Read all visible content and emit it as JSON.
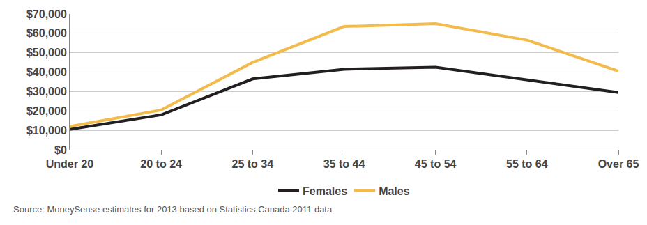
{
  "chart_data": {
    "type": "line",
    "categories": [
      "Under 20",
      "20 to 24",
      "25 to 34",
      "35 to 44",
      "45 to 54",
      "55 to 64",
      "Over 65"
    ],
    "series": [
      {
        "name": "Females",
        "color": "#231f20",
        "values": [
          10500,
          18000,
          36500,
          41500,
          42500,
          36000,
          29500
        ]
      },
      {
        "name": "Males",
        "color": "#f2bb4b",
        "values": [
          12000,
          20500,
          45000,
          63500,
          65000,
          56500,
          40500
        ]
      }
    ],
    "ylim": [
      0,
      70000
    ],
    "yticks": [
      {
        "value": 0,
        "label": "$0"
      },
      {
        "value": 10000,
        "label": "$10,000"
      },
      {
        "value": 20000,
        "label": "$20,000"
      },
      {
        "value": 30000,
        "label": "$30,000"
      },
      {
        "value": 40000,
        "label": "$40,000"
      },
      {
        "value": 50000,
        "label": "$50,000"
      },
      {
        "value": 60000,
        "label": "$60,000"
      },
      {
        "value": 70000,
        "label": "$70,000"
      }
    ],
    "grid": true,
    "legend": "bottom",
    "annotations": [
      "Source: MoneySense estimates for 2013 based on Statistics Canada 2011 data"
    ]
  }
}
